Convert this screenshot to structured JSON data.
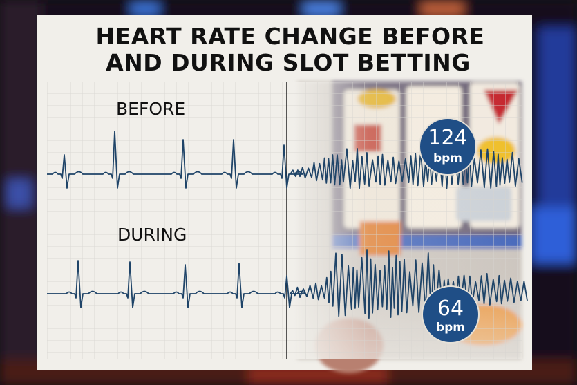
{
  "header": {
    "title_lines": [
      "HEART RATE CHANGE BEFORE",
      "AND DURING SLOT BETTING"
    ]
  },
  "panels": [
    {
      "label": "BEFORE",
      "badge": {
        "value": 124,
        "unit": "bpm"
      }
    },
    {
      "label": "DURING",
      "badge": {
        "value": 64,
        "unit": "bpm"
      }
    }
  ]
}
